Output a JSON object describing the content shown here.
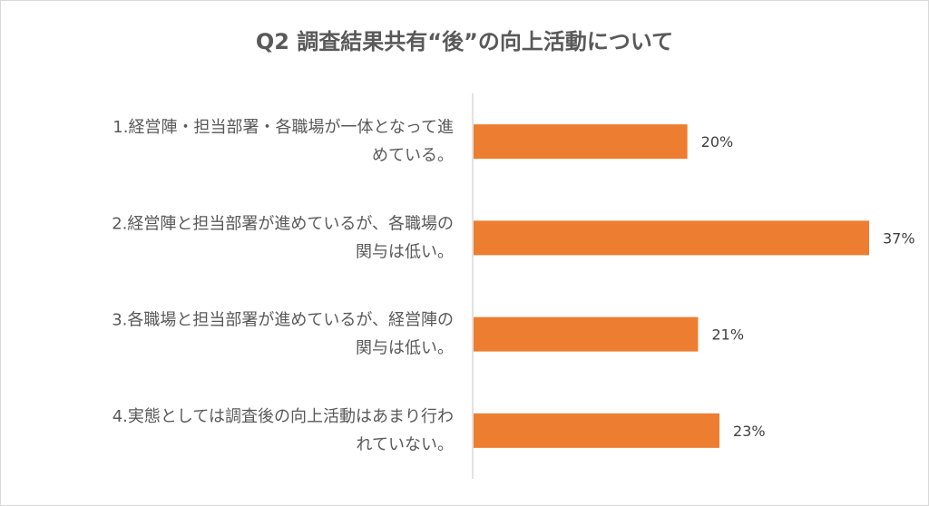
{
  "chart_data": {
    "type": "bar",
    "orientation": "horizontal",
    "title": "Q2 調査結果共有“後”の向上活動について",
    "categories": [
      [
        "1.経営陣・担当部署・各職場が一体となって進",
        "めている。"
      ],
      [
        "2.経営陣と担当部署が進めているが、各職場の",
        "関与は低い。"
      ],
      [
        "3.各職場と担当部署が進めているが、経営陣の",
        "関与は低い。"
      ],
      [
        "4.実態としては調査後の向上活動はあまり行わ",
        "れていない。"
      ]
    ],
    "values": [
      20,
      37,
      21,
      23
    ],
    "data_labels": [
      "20%",
      "37%",
      "21%",
      "23%"
    ],
    "xlim": [
      0,
      40
    ],
    "grid": false,
    "legend": "none",
    "bar_color": "#ED7D31",
    "axis_color": "#d9d9d9"
  }
}
